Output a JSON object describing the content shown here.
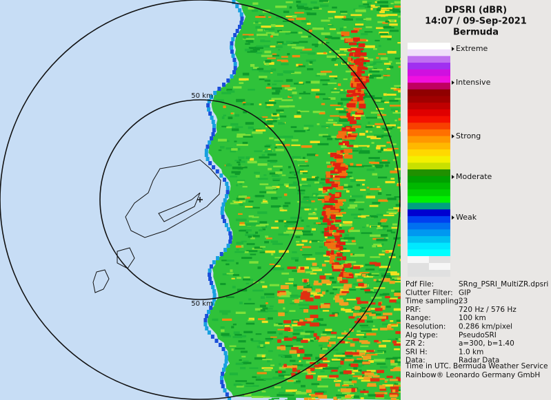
{
  "header": {
    "title": "DPSRI (dBR)",
    "time": "14:07 / 09-Sep-2021",
    "site": "Bermuda"
  },
  "legend": {
    "labels": [
      "Extreme",
      "Intensive",
      "Strong",
      "Moderate",
      "Weak"
    ]
  },
  "map": {
    "range_labels": [
      "50 km",
      "50 km"
    ]
  },
  "info": {
    "rows": [
      [
        "Pdf File:",
        "SRng_PSRI_MultiZR.dpsri"
      ],
      [
        "Clutter Filter:",
        "GIP"
      ],
      [
        "Time sampling:",
        "23"
      ],
      [
        "PRF:",
        "720 Hz / 576 Hz"
      ],
      [
        "Range:",
        "100 km"
      ],
      [
        "Resolution:",
        "0.286 km/pixel"
      ],
      [
        "Alg type:",
        "PseudoSRI"
      ],
      [
        "ZR 2:",
        "a=300, b=1.40"
      ],
      [
        "SRI H:",
        "1.0 km"
      ],
      [
        "Data:",
        "Radar Data"
      ]
    ],
    "footer": [
      "Time in UTC.",
      "Bermuda Weather Service",
      "Rainbow® Leonardo Germany GmbH"
    ]
  }
}
